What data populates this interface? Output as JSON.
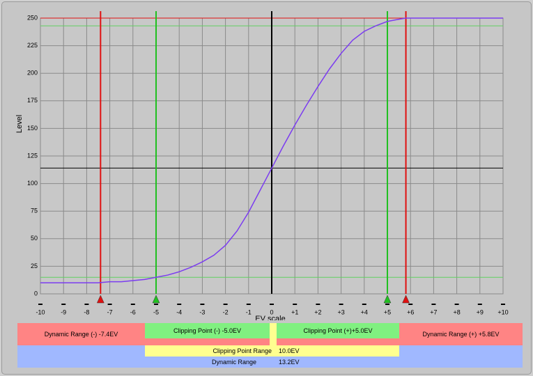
{
  "chart_data": {
    "type": "line",
    "xlabel": "EV scale",
    "ylabel": "Level",
    "xlim": [
      -10,
      10
    ],
    "ylim": [
      0,
      250
    ],
    "xticks": [
      -10,
      -9,
      -8,
      -7,
      -6,
      -5,
      -4,
      -3,
      -2,
      -1,
      0,
      {
        "value": 1,
        "label": "+1"
      },
      {
        "value": 2,
        "label": "+2"
      },
      {
        "value": 3,
        "label": "+3"
      },
      {
        "value": 4,
        "label": "+4"
      },
      {
        "value": 5,
        "label": "+5"
      },
      {
        "value": 6,
        "label": "+6"
      },
      {
        "value": 7,
        "label": "+7"
      },
      {
        "value": 8,
        "label": "+8"
      },
      {
        "value": 9,
        "label": "+9"
      },
      {
        "value": 10,
        "label": "+10"
      }
    ],
    "yticks": [
      0,
      25,
      50,
      75,
      100,
      125,
      150,
      175,
      200,
      225,
      250
    ],
    "grid": true,
    "x": [
      -10,
      -9,
      -8,
      -7.5,
      -7,
      -6.5,
      -6,
      -5.5,
      -5,
      -4.5,
      -4,
      -3.5,
      -3,
      -2.5,
      -2,
      -1.5,
      -1,
      -0.5,
      0,
      0.5,
      1,
      1.5,
      2,
      2.5,
      3,
      3.5,
      4,
      4.5,
      5,
      5.5,
      5.8,
      6,
      7,
      8,
      9,
      10
    ],
    "values": [
      10,
      10,
      10,
      10,
      11,
      11,
      12,
      13,
      15,
      17,
      20,
      24,
      29,
      35,
      44,
      57,
      74,
      94,
      114,
      134,
      153,
      171,
      188,
      204,
      218,
      230,
      238,
      243,
      247,
      249,
      250,
      250,
      250,
      250,
      250,
      250
    ],
    "color": "#7b3cf0",
    "vlines": [
      {
        "value": -7.4,
        "color": "#e01010"
      },
      {
        "value": -5.0,
        "color": "#20c020"
      },
      {
        "value": 0,
        "color": "#000000"
      },
      {
        "value": 5.0,
        "color": "#20c020"
      },
      {
        "value": 5.8,
        "color": "#e01010"
      }
    ],
    "hlines": [
      {
        "value": 250,
        "color": "#e01010"
      },
      {
        "value": 243,
        "color": "#60d060"
      },
      {
        "value": 15,
        "color": "#60d060"
      },
      {
        "value": 114,
        "color": "#000000"
      }
    ],
    "markers": [
      {
        "value": -7.4,
        "color": "#e01010"
      },
      {
        "value": -5.0,
        "color": "#20c020"
      },
      {
        "value": 5.0,
        "color": "#20c020"
      },
      {
        "value": 5.8,
        "color": "#e01010"
      }
    ]
  },
  "panel": {
    "dr_minus": "Dynamic Range (-) -7.4EV",
    "cp_minus": "Clipping Point (-) -5.0EV",
    "cp_plus": "Clipping Point (+)+5.0EV",
    "dr_plus": "Dynamic Range (+) +5.8EV",
    "cp_range_label": "Clipping Point Range",
    "cp_range_value": "10.0EV",
    "dr_label": "Dynamic Range",
    "dr_value": "13.2EV"
  }
}
